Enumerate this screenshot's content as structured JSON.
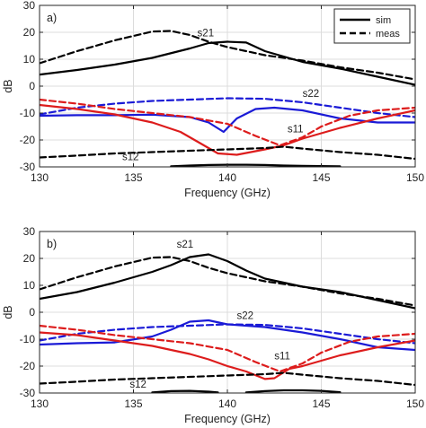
{
  "chart_data": [
    {
      "type": "line",
      "panel_label": "a)",
      "xlabel": "Frequency (GHz)",
      "ylabel": "dB",
      "xlim": [
        130,
        150
      ],
      "ylim": [
        -30,
        30
      ],
      "x_ticks": [
        130,
        135,
        140,
        145,
        150
      ],
      "x_tick_labels": [
        "130",
        "135",
        "140",
        "145",
        "150"
      ],
      "y_ticks": [
        -30,
        -20,
        -10,
        0,
        10,
        20,
        30
      ],
      "y_tick_labels": [
        "-30",
        "-20",
        "-10",
        "0",
        "10",
        "20",
        "30"
      ],
      "grid": true,
      "legend": {
        "placement": "top-right",
        "entries": [
          {
            "label": "sim",
            "style": "solid"
          },
          {
            "label": "meas",
            "style": "dashed"
          }
        ]
      },
      "annotations": [
        {
          "text": "s21",
          "x": 138.4,
          "y": 18.5
        },
        {
          "text": "s22",
          "x": 144.0,
          "y": -4.0
        },
        {
          "text": "s11",
          "x": 143.2,
          "y": -17.2
        },
        {
          "text": "s12",
          "x": 134.4,
          "y": -27.5
        }
      ],
      "series": [
        {
          "color": "#000000",
          "style": "solid",
          "x": [
            130,
            132,
            134,
            136,
            138,
            139,
            140,
            141,
            142,
            144,
            146,
            148,
            150
          ],
          "y": [
            4.3,
            6.0,
            8.0,
            10.5,
            14.0,
            16.0,
            16.5,
            16.2,
            13.0,
            9.0,
            6.5,
            3.5,
            0.5
          ]
        },
        {
          "color": "#000000",
          "style": "dashed",
          "x": [
            130,
            132,
            134,
            136,
            137,
            138,
            139,
            140,
            142,
            144,
            146,
            148,
            150
          ],
          "y": [
            8.5,
            13.0,
            17.0,
            20.3,
            20.5,
            19.0,
            16.5,
            14.5,
            11.5,
            9.5,
            7.0,
            5.0,
            2.5
          ]
        },
        {
          "color": "#1a1ad6",
          "style": "solid",
          "x": [
            130,
            132,
            134,
            136,
            138,
            139,
            139.8,
            140.5,
            141.5,
            142.5,
            144,
            146,
            148,
            150
          ],
          "y": [
            -11.0,
            -10.8,
            -10.8,
            -10.6,
            -11.5,
            -13.5,
            -17.0,
            -12.0,
            -8.5,
            -8.0,
            -9.0,
            -12.0,
            -13.5,
            -13.5
          ]
        },
        {
          "color": "#1a1ad6",
          "style": "dashed",
          "x": [
            130,
            132,
            134,
            136,
            138,
            140,
            142,
            144,
            146,
            148,
            150
          ],
          "y": [
            -10.5,
            -8.0,
            -6.5,
            -5.5,
            -5.0,
            -4.5,
            -4.7,
            -6.0,
            -8.0,
            -10.0,
            -11.5
          ]
        },
        {
          "color": "#dd1c1c",
          "style": "solid",
          "x": [
            130,
            132,
            134,
            136,
            137.5,
            138.5,
            139.5,
            140.5,
            142,
            143,
            144,
            146,
            148,
            150
          ],
          "y": [
            -7.0,
            -8.5,
            -10.5,
            -13.5,
            -17.0,
            -21.0,
            -25.0,
            -25.5,
            -23.5,
            -22.0,
            -19.5,
            -15.5,
            -12.0,
            -9.0
          ]
        },
        {
          "color": "#dd1c1c",
          "style": "dashed",
          "x": [
            130,
            132,
            134,
            136,
            138,
            140,
            141.5,
            142.8,
            144,
            145,
            146.5,
            148,
            150
          ],
          "y": [
            -5.0,
            -6.5,
            -8.5,
            -10.0,
            -11.5,
            -14.0,
            -18.5,
            -22.0,
            -19.0,
            -15.0,
            -11.0,
            -9.0,
            -8.0
          ]
        },
        {
          "color": "#000000",
          "style": "solid",
          "x": [
            137,
            138,
            139,
            140,
            141,
            142,
            143,
            144,
            145,
            146
          ],
          "y": [
            -29.8,
            -29.5,
            -29.3,
            -29.2,
            -29.2,
            -29.3,
            -29.5,
            -29.6,
            -29.7,
            -29.8
          ]
        },
        {
          "color": "#000000",
          "style": "dashed",
          "x": [
            130,
            132,
            134,
            136,
            138,
            140,
            142,
            143,
            144,
            146,
            148,
            150
          ],
          "y": [
            -26.5,
            -25.8,
            -25.0,
            -24.5,
            -24.0,
            -23.5,
            -23.0,
            -22.5,
            -23.2,
            -24.5,
            -25.5,
            -27.0
          ]
        }
      ]
    },
    {
      "type": "line",
      "panel_label": "b)",
      "xlabel": "Frequency (GHz)",
      "ylabel": "dB",
      "xlim": [
        130,
        150
      ],
      "ylim": [
        -30,
        30
      ],
      "x_ticks": [
        130,
        135,
        140,
        145,
        150
      ],
      "x_tick_labels": [
        "130",
        "135",
        "140",
        "145",
        "150"
      ],
      "y_ticks": [
        -30,
        -20,
        -10,
        0,
        10,
        20,
        30
      ],
      "y_tick_labels": [
        "-30",
        "-20",
        "-10",
        "0",
        "10",
        "20",
        "30"
      ],
      "grid": true,
      "annotations": [
        {
          "text": "s21",
          "x": 137.3,
          "y": 24.0
        },
        {
          "text": "s22",
          "x": 140.5,
          "y": -2.5
        },
        {
          "text": "s11",
          "x": 142.5,
          "y": -17.5
        },
        {
          "text": "s12",
          "x": 134.8,
          "y": -28.0
        }
      ],
      "series": [
        {
          "color": "#000000",
          "style": "solid",
          "x": [
            130,
            132,
            134,
            136,
            137,
            138,
            139,
            140,
            141,
            142,
            144,
            146,
            148,
            150
          ],
          "y": [
            5.0,
            7.5,
            11.0,
            15.0,
            17.5,
            20.5,
            21.5,
            19.0,
            15.5,
            12.5,
            9.5,
            7.5,
            4.5,
            1.5
          ]
        },
        {
          "color": "#000000",
          "style": "dashed",
          "x": [
            130,
            132,
            134,
            136,
            137,
            138,
            139,
            140,
            142,
            144,
            146,
            148,
            150
          ],
          "y": [
            8.5,
            13.0,
            17.0,
            20.3,
            20.5,
            19.0,
            16.5,
            14.5,
            11.5,
            9.5,
            7.0,
            5.0,
            2.5
          ]
        },
        {
          "color": "#1a1ad6",
          "style": "solid",
          "x": [
            130,
            132,
            134,
            136,
            137,
            138,
            139,
            140,
            142,
            144,
            146,
            148,
            150
          ],
          "y": [
            -12.0,
            -11.5,
            -11.2,
            -9.0,
            -6.5,
            -3.5,
            -3.0,
            -4.5,
            -5.5,
            -7.5,
            -10.0,
            -13.0,
            -14.0
          ]
        },
        {
          "color": "#1a1ad6",
          "style": "dashed",
          "x": [
            130,
            132,
            134,
            136,
            138,
            140,
            142,
            144,
            146,
            148,
            150
          ],
          "y": [
            -10.5,
            -8.0,
            -6.5,
            -5.5,
            -5.0,
            -4.5,
            -4.7,
            -6.0,
            -8.0,
            -10.0,
            -11.5
          ]
        },
        {
          "color": "#dd1c1c",
          "style": "solid",
          "x": [
            130,
            132,
            134,
            136,
            137,
            138,
            139,
            140,
            141,
            142,
            142.5,
            143.3,
            144,
            146,
            148,
            150
          ],
          "y": [
            -7.5,
            -8.5,
            -10.5,
            -12.5,
            -14.0,
            -15.5,
            -17.5,
            -20.0,
            -22.0,
            -24.8,
            -24.5,
            -21.0,
            -20.0,
            -16.0,
            -13.0,
            -10.5
          ]
        },
        {
          "color": "#dd1c1c",
          "style": "dashed",
          "x": [
            130,
            132,
            134,
            136,
            138,
            140,
            141.5,
            142.8,
            144,
            145,
            146.5,
            148,
            150
          ],
          "y": [
            -5.0,
            -6.5,
            -8.5,
            -10.0,
            -11.5,
            -14.0,
            -18.5,
            -22.0,
            -19.0,
            -15.0,
            -11.0,
            -9.0,
            -8.0
          ]
        },
        {
          "color": "#000000",
          "style": "solid",
          "x": [
            136,
            137,
            138,
            139,
            139.5
          ],
          "y": [
            -29.8,
            -29.3,
            -29.2,
            -29.5,
            -29.8
          ]
        },
        {
          "color": "#000000",
          "style": "solid",
          "x": [
            141,
            142,
            143,
            144,
            145,
            146
          ],
          "y": [
            -29.8,
            -29.3,
            -29.0,
            -29.0,
            -29.2,
            -29.7
          ]
        },
        {
          "color": "#000000",
          "style": "dashed",
          "x": [
            130,
            132,
            134,
            136,
            138,
            140,
            142,
            143,
            144,
            146,
            148,
            150
          ],
          "y": [
            -26.5,
            -25.8,
            -25.0,
            -24.5,
            -24.0,
            -23.5,
            -23.0,
            -22.5,
            -23.2,
            -24.5,
            -25.5,
            -27.0
          ]
        }
      ]
    }
  ]
}
